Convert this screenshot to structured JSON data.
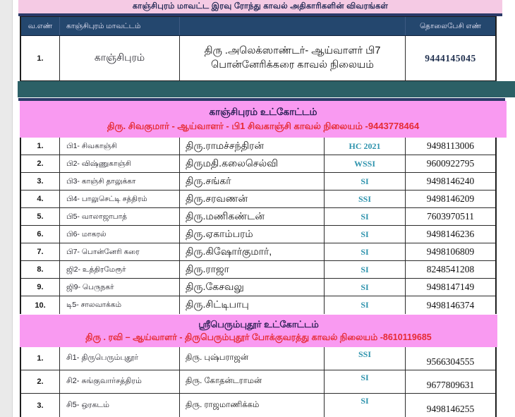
{
  "page": {
    "title": "காஞ்சிபுரம் மாவட்ட இரவு ரோந்து காவல் அதிகாரிகளின் விவரங்கள்"
  },
  "main_table": {
    "headers": {
      "serial": "வ.எண்",
      "district": "காஞ்சிபுரம் மாவட்டம்",
      "name": "",
      "phone": "தொலைபேசி எண்"
    },
    "row": {
      "serial": "1.",
      "station": "காஞ்சிபுரம்",
      "officer": "திரு .அலெக்ஸாண்டர்- ஆய்வாளர் பி7 பொன்னேரிக்கரை காவல் நிலையம்",
      "phone": "9444145045"
    }
  },
  "sections": [
    {
      "title": "காஞ்சிபுரம் உட்கோட்டம்",
      "subtitle": "திரு. சிவகுமார் - ஆய்வாளர் - பி1 சிவகாஞ்சி காவல் நிலையம் -9443778464",
      "rows": [
        {
          "serial": "1.",
          "station": "பி1- சிவகாஞ்சி",
          "officer": "திரு.ராமச்சந்திரன்",
          "rank": "HC 2021",
          "phone": "9498113006"
        },
        {
          "serial": "2.",
          "station": "பி2- விஷ்ணுகாஞ்சி",
          "officer": "திருமதி.கலைசெல்வி",
          "rank": "WSSI",
          "phone": "9600922795"
        },
        {
          "serial": "3.",
          "station": "பி3- காஞ்சி தாலுக்கா",
          "officer": "திரு.சங்கர்",
          "rank": "SI",
          "phone": "9498146240"
        },
        {
          "serial": "4.",
          "station": "பி4- பாலுசெட்டி சத்திரம்",
          "officer": "திரு.சரவணன்",
          "rank": "SSI",
          "phone": "9498146209"
        },
        {
          "serial": "5.",
          "station": "பி5- வாலாஜாபாத்",
          "officer": "திரு.மணிகண்டன்",
          "rank": "SI",
          "phone": "7603970511"
        },
        {
          "serial": "6.",
          "station": "பி6- மாகரல்",
          "officer": "திரு.ஏகாம்பரம்",
          "rank": "SI",
          "phone": "9498146236"
        },
        {
          "serial": "7.",
          "station": "பி7- பொன்னேரி கரை",
          "officer": "திரு.கிஷோர்குமார்,",
          "rank": "SI",
          "phone": "9498106809"
        },
        {
          "serial": "8.",
          "station": "ஜி2- உத்திரமேரூர்",
          "officer": "திரு.ராஜா",
          "rank": "SI",
          "phone": "8248541208"
        },
        {
          "serial": "9.",
          "station": "ஜி9- பெருநகர்",
          "officer": "திரு.கேசவலு",
          "rank": "SI",
          "phone": "9498147149"
        },
        {
          "serial": "10.",
          "station": "டி5- சாலவாக்கம்",
          "officer": "திரு.சிட்டிபாபு",
          "rank": "SI",
          "phone": "9498146374"
        }
      ]
    },
    {
      "title": "ஸ்ரீபெரும்புதூர் உட்கோட்டம்",
      "subtitle": "திரு . ரவி – ஆய்வாளர் - திருபெரும்புதூர் போக்குவரத்து காவல் நிலையம் -8610119685",
      "rows": [
        {
          "serial": "1.",
          "station": "சி1- திருபெரும்புதூர்",
          "officer": "திரு. புஷ்பராஜன்",
          "rank": "SSI",
          "phone": "9566304555"
        },
        {
          "serial": "2.",
          "station": "சி2- சுங்குவார்சத்திரம்",
          "officer": "திரு. கோதன்டராமன்",
          "rank": "SI",
          "phone": "9677809631"
        },
        {
          "serial": "3.",
          "station": "சி5- ஒரகடம்",
          "officer": "திரு. ராஜமாணிக்கம்",
          "rank": "SI",
          "phone": "9498146255"
        }
      ]
    }
  ],
  "colors": {
    "title_band_bg": "#f5cae4",
    "header_row_bg": "#24476e",
    "teal_bar": "#2c6066",
    "navy_strip": "#2b3a68",
    "section_band_bg": "#f99af1",
    "subtitle_red": "#e62b33",
    "rank_teal": "#2e93ad"
  }
}
